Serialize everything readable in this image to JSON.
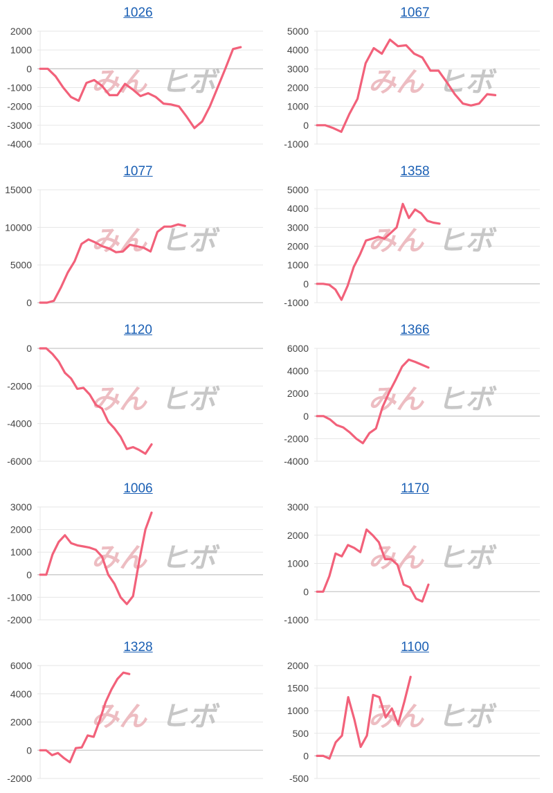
{
  "colors": {
    "line": "#f2617a",
    "grid": "#e6e6e6",
    "zero": "#c8c8c8",
    "title": "#1a5fb4"
  },
  "watermark": {
    "left": "みん",
    "right": "ヒボ"
  },
  "chart_data": [
    {
      "type": "line",
      "title": "1026",
      "ylim": [
        -4000,
        2000
      ],
      "yticks": [
        2000,
        1000,
        0,
        -1000,
        -2000,
        -3000,
        -4000
      ],
      "y": [
        0,
        0,
        -400,
        -1000,
        -1500,
        -1700,
        -750,
        -600,
        -900,
        -1400,
        -1400,
        -800,
        -1100,
        -1450,
        -1300,
        -1500,
        -1850,
        -1900,
        -2000,
        -2550,
        -3150,
        -2800,
        -2000,
        -1000,
        0,
        1050,
        1150
      ]
    },
    {
      "type": "line",
      "title": "1067",
      "ylim": [
        -1000,
        5000
      ],
      "yticks": [
        5000,
        4000,
        3000,
        2000,
        1000,
        0,
        -1000
      ],
      "y": [
        0,
        0,
        -150,
        -350,
        600,
        1400,
        3300,
        4100,
        3800,
        4550,
        4200,
        4250,
        3800,
        3600,
        2900,
        2900,
        2300,
        1650,
        1150,
        1050,
        1150,
        1650,
        1600
      ]
    },
    {
      "type": "line",
      "title": "1077",
      "ylim": [
        0,
        15000
      ],
      "yticks": [
        15000,
        10000,
        5000,
        0
      ],
      "y": [
        0,
        0,
        250,
        2000,
        4000,
        5500,
        7800,
        8400,
        8000,
        7500,
        7200,
        6700,
        6800,
        7700,
        7500,
        7300,
        6800,
        9400,
        10100,
        10100,
        10400,
        10200
      ]
    },
    {
      "type": "line",
      "title": "1358",
      "ylim": [
        -1000,
        5000
      ],
      "yticks": [
        5000,
        4000,
        3000,
        2000,
        1000,
        0,
        -1000
      ],
      "y": [
        0,
        0,
        -50,
        -300,
        -850,
        -100,
        900,
        1550,
        2300,
        2400,
        2500,
        2400,
        2700,
        3000,
        4250,
        3500,
        3950,
        3750,
        3350,
        3250,
        3200
      ]
    },
    {
      "type": "line",
      "title": "1120",
      "ylim": [
        -6000,
        0
      ],
      "yticks": [
        0,
        -2000,
        -4000,
        -6000
      ],
      "y": [
        0,
        0,
        -300,
        -700,
        -1300,
        -1600,
        -2150,
        -2100,
        -2450,
        -3000,
        -3200,
        -3900,
        -4250,
        -4700,
        -5350,
        -5250,
        -5400,
        -5600,
        -5100
      ]
    },
    {
      "type": "line",
      "title": "1366",
      "ylim": [
        -4000,
        6000
      ],
      "yticks": [
        6000,
        4000,
        2000,
        0,
        -2000,
        -4000
      ],
      "y": [
        0,
        0,
        -300,
        -800,
        -1000,
        -1450,
        -2000,
        -2400,
        -1500,
        -1100,
        800,
        2100,
        3200,
        4400,
        5000,
        4800,
        4550,
        4300
      ]
    },
    {
      "type": "line",
      "title": "1006",
      "ylim": [
        -2000,
        3000
      ],
      "yticks": [
        3000,
        2000,
        1000,
        0,
        -1000,
        -2000
      ],
      "y": [
        0,
        0,
        900,
        1450,
        1750,
        1400,
        1300,
        1250,
        1200,
        1100,
        800,
        0,
        -400,
        -1000,
        -1300,
        -950,
        600,
        2000,
        2750
      ]
    },
    {
      "type": "line",
      "title": "1170",
      "ylim": [
        -1000,
        3000
      ],
      "yticks": [
        3000,
        2000,
        1000,
        0,
        -1000
      ],
      "y": [
        0,
        0,
        550,
        1350,
        1250,
        1650,
        1550,
        1400,
        2200,
        2000,
        1750,
        1150,
        1150,
        950,
        250,
        150,
        -250,
        -350,
        250
      ]
    },
    {
      "type": "line",
      "title": "1328",
      "ylim": [
        -2000,
        6000
      ],
      "yticks": [
        6000,
        4000,
        2000,
        0,
        -2000
      ],
      "y": [
        0,
        0,
        -350,
        -200,
        -550,
        -850,
        150,
        200,
        1050,
        950,
        2100,
        3400,
        4300,
        5050,
        5500,
        5400
      ]
    },
    {
      "type": "line",
      "title": "1100",
      "ylim": [
        -500,
        2000
      ],
      "yticks": [
        2000,
        1500,
        1000,
        500,
        0,
        -500
      ],
      "y": [
        0,
        0,
        -60,
        300,
        450,
        1300,
        800,
        200,
        450,
        1350,
        1300,
        850,
        1050,
        700,
        1200,
        1750
      ]
    }
  ]
}
